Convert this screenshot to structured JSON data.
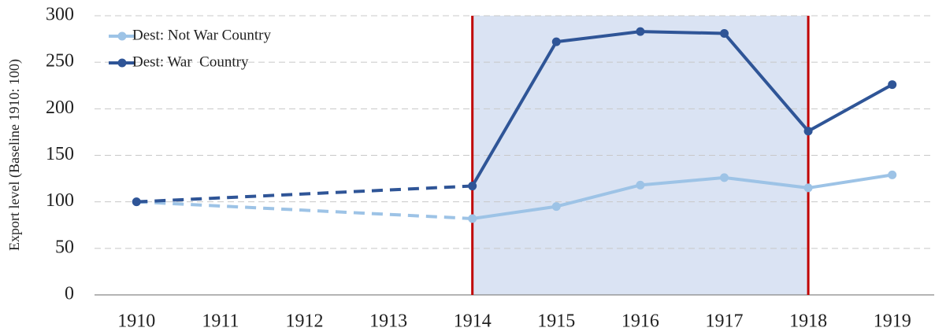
{
  "chart_data": {
    "type": "line",
    "y_label": "Export level (Baseline 1910: 100)",
    "x": [
      1910,
      1914,
      1915,
      1916,
      1917,
      1918,
      1919
    ],
    "series": [
      {
        "name": "Dest: Not War Country",
        "color": "#9dc3e6",
        "values": [
          100,
          82,
          95,
          118,
          126,
          115,
          129
        ]
      },
      {
        "name": "Dest: War  Country",
        "color": "#2f5597",
        "values": [
          100,
          117,
          272,
          283,
          281,
          176,
          226
        ]
      }
    ],
    "xlim": [
      1909.5,
      1919.5
    ],
    "xticks": [
      1910,
      1911,
      1912,
      1913,
      1914,
      1915,
      1916,
      1917,
      1918,
      1919
    ],
    "ylim": [
      0,
      300
    ],
    "yticks": [
      0,
      50,
      100,
      150,
      200,
      250,
      300
    ],
    "grid": true,
    "dashed_before": 1914,
    "shaded_region": [
      1914,
      1918
    ],
    "shade_color": "#dae3f3",
    "region_line_color": "#c00000",
    "legend": "top-left"
  }
}
